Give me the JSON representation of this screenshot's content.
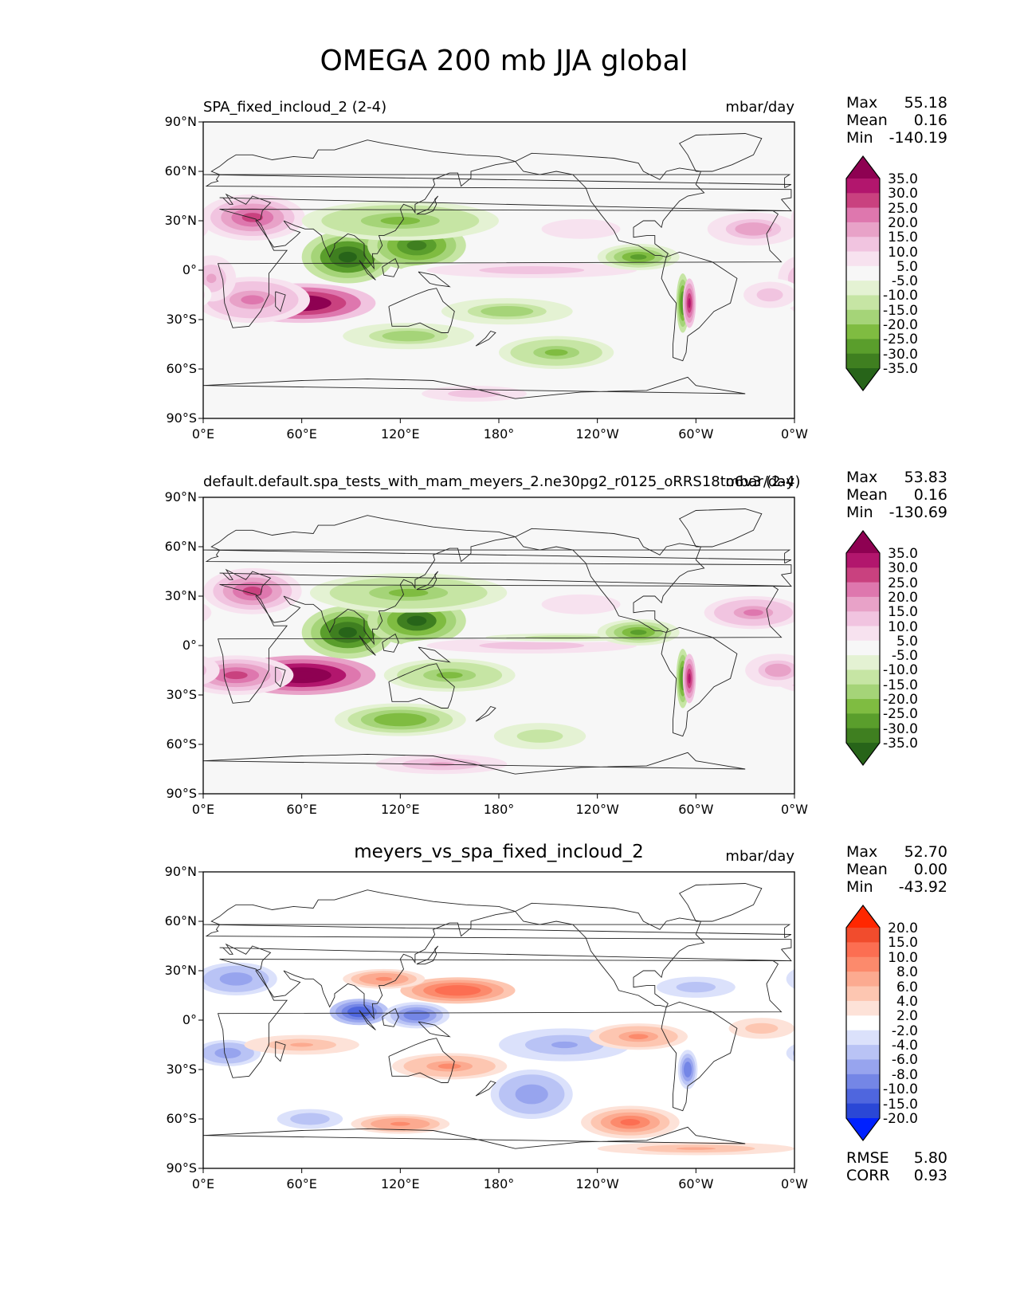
{
  "figure": {
    "title": "OMEGA 200 mb JJA global"
  },
  "chart_data": [
    {
      "type": "heatmap",
      "name": "test",
      "title": "SPA_fixed_incloud_2 (2-4)",
      "units": "mbar/day",
      "stats": {
        "max": "55.18",
        "mean": "0.16",
        "min": "-140.19"
      },
      "xlim": [
        0,
        360
      ],
      "ylim": [
        -90,
        90
      ],
      "x_ticks": [
        "0°E",
        "60°E",
        "120°E",
        "180°",
        "120°W",
        "60°W",
        "0°W"
      ],
      "y_ticks": [
        "90°N",
        "60°N",
        "30°N",
        "0°",
        "30°S",
        "60°S",
        "90°S"
      ],
      "colorbar": {
        "labels": [
          "35.0",
          "30.0",
          "25.0",
          "20.0",
          "15.0",
          "10.0",
          "5.0",
          "-5.0",
          "-10.0",
          "-15.0",
          "-20.0",
          "-25.0",
          "-30.0",
          "-35.0"
        ],
        "colors": [
          "#8e0152",
          "#b2166d",
          "#c9417f",
          "#de77ae",
          "#e8a2c8",
          "#f1c4e0",
          "#f7e2ef",
          "#f7f7f7",
          "#e4f2d3",
          "#c6e5a4",
          "#a5d478",
          "#7fbc41",
          "#5a9e2c",
          "#3f7f20",
          "#276419"
        ]
      },
      "features": [
        {
          "lon": 30,
          "lat": 32,
          "value": 25,
          "rx": 32,
          "ry": 14
        },
        {
          "lon": 60,
          "lat": -20,
          "value": 42,
          "rx": 45,
          "ry": 12
        },
        {
          "lon": 30,
          "lat": -18,
          "value": 20,
          "rx": 35,
          "ry": 14
        },
        {
          "lon": 5,
          "lat": -5,
          "value": 15,
          "rx": 15,
          "ry": 14
        },
        {
          "lon": 88,
          "lat": 8,
          "value": -38,
          "rx": 28,
          "ry": 16
        },
        {
          "lon": 130,
          "lat": 15,
          "value": -35,
          "rx": 30,
          "ry": 15
        },
        {
          "lon": 120,
          "lat": 30,
          "value": -22,
          "rx": 60,
          "ry": 12
        },
        {
          "lon": 200,
          "lat": 0,
          "value": 12,
          "rx": 80,
          "ry": 6
        },
        {
          "lon": 265,
          "lat": 8,
          "value": -28,
          "rx": 25,
          "ry": 8
        },
        {
          "lon": 292,
          "lat": -20,
          "value": -30,
          "rx": 4,
          "ry": 18
        },
        {
          "lon": 296,
          "lat": -20,
          "value": 32,
          "rx": 4,
          "ry": 15
        },
        {
          "lon": 335,
          "lat": 25,
          "value": 18,
          "rx": 28,
          "ry": 10
        },
        {
          "lon": 345,
          "lat": -15,
          "value": 14,
          "rx": 20,
          "ry": 10
        },
        {
          "lon": 185,
          "lat": -25,
          "value": -18,
          "rx": 40,
          "ry": 8
        },
        {
          "lon": 125,
          "lat": -40,
          "value": -18,
          "rx": 40,
          "ry": 8
        },
        {
          "lon": 215,
          "lat": -50,
          "value": -22,
          "rx": 35,
          "ry": 10
        },
        {
          "lon": 165,
          "lat": -75,
          "value": 14,
          "rx": 40,
          "ry": 6
        },
        {
          "lon": 230,
          "lat": 25,
          "value": 8,
          "rx": 40,
          "ry": 10
        }
      ]
    },
    {
      "type": "heatmap",
      "name": "reference",
      "title": "default.default.spa_tests_with_mam_meyers_2.ne30pg2_r0125_oRRS18to6v3 (2-4)",
      "units": "mbar/day",
      "stats": {
        "max": "53.83",
        "mean": "0.16",
        "min": "-130.69"
      },
      "xlim": [
        0,
        360
      ],
      "ylim": [
        -90,
        90
      ],
      "x_ticks": [
        "0°E",
        "60°E",
        "120°E",
        "180°",
        "120°W",
        "60°W",
        "0°W"
      ],
      "y_ticks": [
        "90°N",
        "60°N",
        "30°N",
        "0°",
        "30°S",
        "60°S",
        "90°S"
      ],
      "colorbar": {
        "labels": [
          "35.0",
          "30.0",
          "25.0",
          "20.0",
          "15.0",
          "10.0",
          "5.0",
          "-5.0",
          "-10.0",
          "-15.0",
          "-20.0",
          "-25.0",
          "-30.0",
          "-35.0"
        ],
        "colors": [
          "#8e0152",
          "#b2166d",
          "#c9417f",
          "#de77ae",
          "#e8a2c8",
          "#f1c4e0",
          "#f7e2ef",
          "#f7f7f7",
          "#e4f2d3",
          "#c6e5a4",
          "#a5d478",
          "#7fbc41",
          "#5a9e2c",
          "#3f7f20",
          "#276419"
        ]
      },
      "features": [
        {
          "lon": 30,
          "lat": 33,
          "value": 28,
          "rx": 30,
          "ry": 14
        },
        {
          "lon": 60,
          "lat": -18,
          "value": 45,
          "rx": 45,
          "ry": 12
        },
        {
          "lon": 20,
          "lat": -18,
          "value": 25,
          "rx": 35,
          "ry": 12
        },
        {
          "lon": 88,
          "lat": 8,
          "value": -38,
          "rx": 28,
          "ry": 16
        },
        {
          "lon": 130,
          "lat": 15,
          "value": -36,
          "rx": 30,
          "ry": 15
        },
        {
          "lon": 125,
          "lat": 32,
          "value": -22,
          "rx": 60,
          "ry": 12
        },
        {
          "lon": 200,
          "lat": 0,
          "value": 14,
          "rx": 80,
          "ry": 6
        },
        {
          "lon": 220,
          "lat": 5,
          "value": -14,
          "rx": 60,
          "ry": 3
        },
        {
          "lon": 265,
          "lat": 8,
          "value": -28,
          "rx": 25,
          "ry": 8
        },
        {
          "lon": 292,
          "lat": -20,
          "value": -30,
          "rx": 4,
          "ry": 18
        },
        {
          "lon": 296,
          "lat": -20,
          "value": 32,
          "rx": 4,
          "ry": 15
        },
        {
          "lon": 335,
          "lat": 20,
          "value": 20,
          "rx": 30,
          "ry": 10
        },
        {
          "lon": 350,
          "lat": -15,
          "value": 18,
          "rx": 20,
          "ry": 10
        },
        {
          "lon": 150,
          "lat": -18,
          "value": -22,
          "rx": 40,
          "ry": 10
        },
        {
          "lon": 120,
          "lat": -45,
          "value": -25,
          "rx": 40,
          "ry": 10
        },
        {
          "lon": 205,
          "lat": -55,
          "value": -14,
          "rx": 35,
          "ry": 10
        },
        {
          "lon": 145,
          "lat": -72,
          "value": 16,
          "rx": 40,
          "ry": 6
        },
        {
          "lon": 230,
          "lat": 25,
          "value": 8,
          "rx": 40,
          "ry": 10
        }
      ]
    },
    {
      "type": "heatmap",
      "name": "difference",
      "title": "meyers_vs_spa_fixed_incloud_2",
      "units": "mbar/day",
      "stats": {
        "max": "52.70",
        "mean": "0.00",
        "min": "-43.92"
      },
      "metrics": {
        "rmse": "5.80",
        "corr": "0.93"
      },
      "xlim": [
        0,
        360
      ],
      "ylim": [
        -90,
        90
      ],
      "x_ticks": [
        "0°E",
        "60°E",
        "120°E",
        "180°",
        "120°W",
        "60°W",
        "0°W"
      ],
      "y_ticks": [
        "90°N",
        "60°N",
        "30°N",
        "0°",
        "30°S",
        "60°S",
        "90°S"
      ],
      "colorbar": {
        "labels": [
          "20.0",
          "15.0",
          "10.0",
          "8.0",
          "6.0",
          "4.0",
          "2.0",
          "-2.0",
          "-4.0",
          "-6.0",
          "-8.0",
          "-10.0",
          "-15.0",
          "-20.0"
        ],
        "colors": [
          "#ff2700",
          "#f14c2d",
          "#fc6e52",
          "#fc8a6c",
          "#fcaa90",
          "#fdc6b1",
          "#fde2d8",
          "#ffffff",
          "#dbe1fb",
          "#b9c3f5",
          "#97a4ee",
          "#7486e6",
          "#4f66de",
          "#2a47d6",
          "#0021ff"
        ]
      },
      "features": [
        {
          "lon": 155,
          "lat": 18,
          "value": 14,
          "rx": 35,
          "ry": 8
        },
        {
          "lon": 110,
          "lat": 25,
          "value": 9,
          "rx": 25,
          "ry": 6
        },
        {
          "lon": 95,
          "lat": 5,
          "value": -12,
          "rx": 18,
          "ry": 8
        },
        {
          "lon": 130,
          "lat": 3,
          "value": -10,
          "rx": 20,
          "ry": 8
        },
        {
          "lon": 20,
          "lat": 25,
          "value": -8,
          "rx": 25,
          "ry": 10
        },
        {
          "lon": 15,
          "lat": -20,
          "value": -8,
          "rx": 20,
          "ry": 8
        },
        {
          "lon": 60,
          "lat": -15,
          "value": 7,
          "rx": 35,
          "ry": 6
        },
        {
          "lon": 150,
          "lat": -28,
          "value": 8,
          "rx": 35,
          "ry": 8
        },
        {
          "lon": 220,
          "lat": -15,
          "value": -7,
          "rx": 40,
          "ry": 10
        },
        {
          "lon": 265,
          "lat": -10,
          "value": 8,
          "rx": 30,
          "ry": 8
        },
        {
          "lon": 260,
          "lat": -62,
          "value": 10,
          "rx": 30,
          "ry": 10
        },
        {
          "lon": 200,
          "lat": -45,
          "value": -8,
          "rx": 25,
          "ry": 15
        },
        {
          "lon": 120,
          "lat": -63,
          "value": 9,
          "rx": 30,
          "ry": 6
        },
        {
          "lon": 65,
          "lat": -60,
          "value": -6,
          "rx": 20,
          "ry": 6
        },
        {
          "lon": 300,
          "lat": 20,
          "value": -5,
          "rx": 30,
          "ry": 8
        },
        {
          "lon": 340,
          "lat": -5,
          "value": 5,
          "rx": 25,
          "ry": 8
        },
        {
          "lon": 295,
          "lat": -30,
          "value": -10,
          "rx": 6,
          "ry": 12
        },
        {
          "lon": 300,
          "lat": -78,
          "value": 6,
          "rx": 60,
          "ry": 4
        }
      ]
    }
  ],
  "labels": {
    "max": "Max",
    "mean": "Mean",
    "min": "Min",
    "rmse": "RMSE",
    "corr": "CORR"
  }
}
